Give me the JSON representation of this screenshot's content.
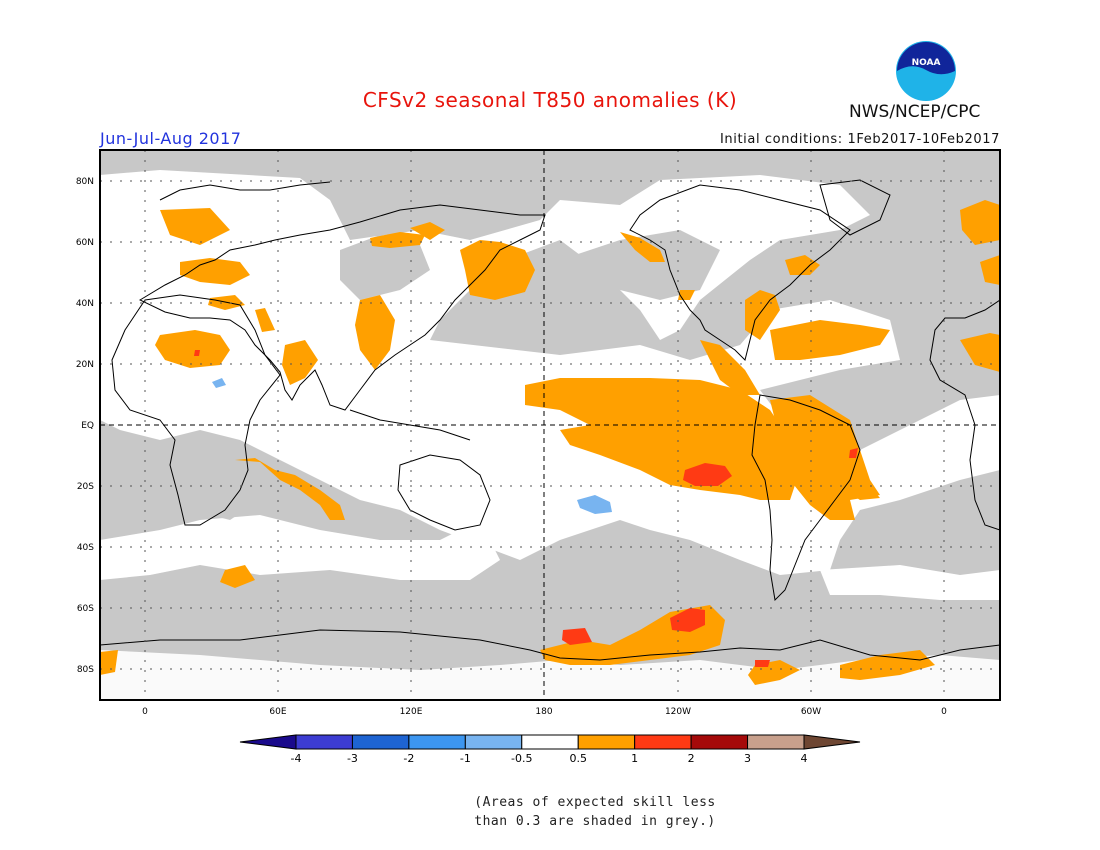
{
  "header": {
    "title": "CFSv2 seasonal T850 anomalies (K)",
    "season": "Jun-Jul-Aug 2017",
    "initial_conditions": "Initial conditions: 1Feb2017-10Feb2017",
    "agency": "NWS/NCEP/CPC",
    "logo_text": "NOAA"
  },
  "map": {
    "lat_labels": [
      "80N",
      "60N",
      "40N",
      "20N",
      "EQ",
      "20S",
      "40S",
      "60S",
      "80S"
    ],
    "lon_labels": [
      "0",
      "60E",
      "120E",
      "180",
      "120W",
      "60W",
      "0"
    ],
    "colors": {
      "land_grey": "#c8c8c8",
      "warm_05_1": "#ffa000",
      "warm_1_2": "#ff3a14",
      "cool_05_1": "#78b4f0",
      "coast": "#000000"
    }
  },
  "colorbar": {
    "tick_labels": [
      "-4",
      "-3",
      "-2",
      "-1",
      "-0.5",
      "0.5",
      "1",
      "2",
      "3",
      "4"
    ],
    "colors": [
      "#1a0a8c",
      "#3c3cd2",
      "#1e64d2",
      "#3c96f0",
      "#78b4f0",
      "#ffffff",
      "#ffa000",
      "#ff3a14",
      "#a50a0a",
      "#c8a08c",
      "#6e4632"
    ]
  },
  "note": {
    "line1": "(Areas of expected skill less",
    "line2": "than 0.3 are shaded in grey.)"
  }
}
